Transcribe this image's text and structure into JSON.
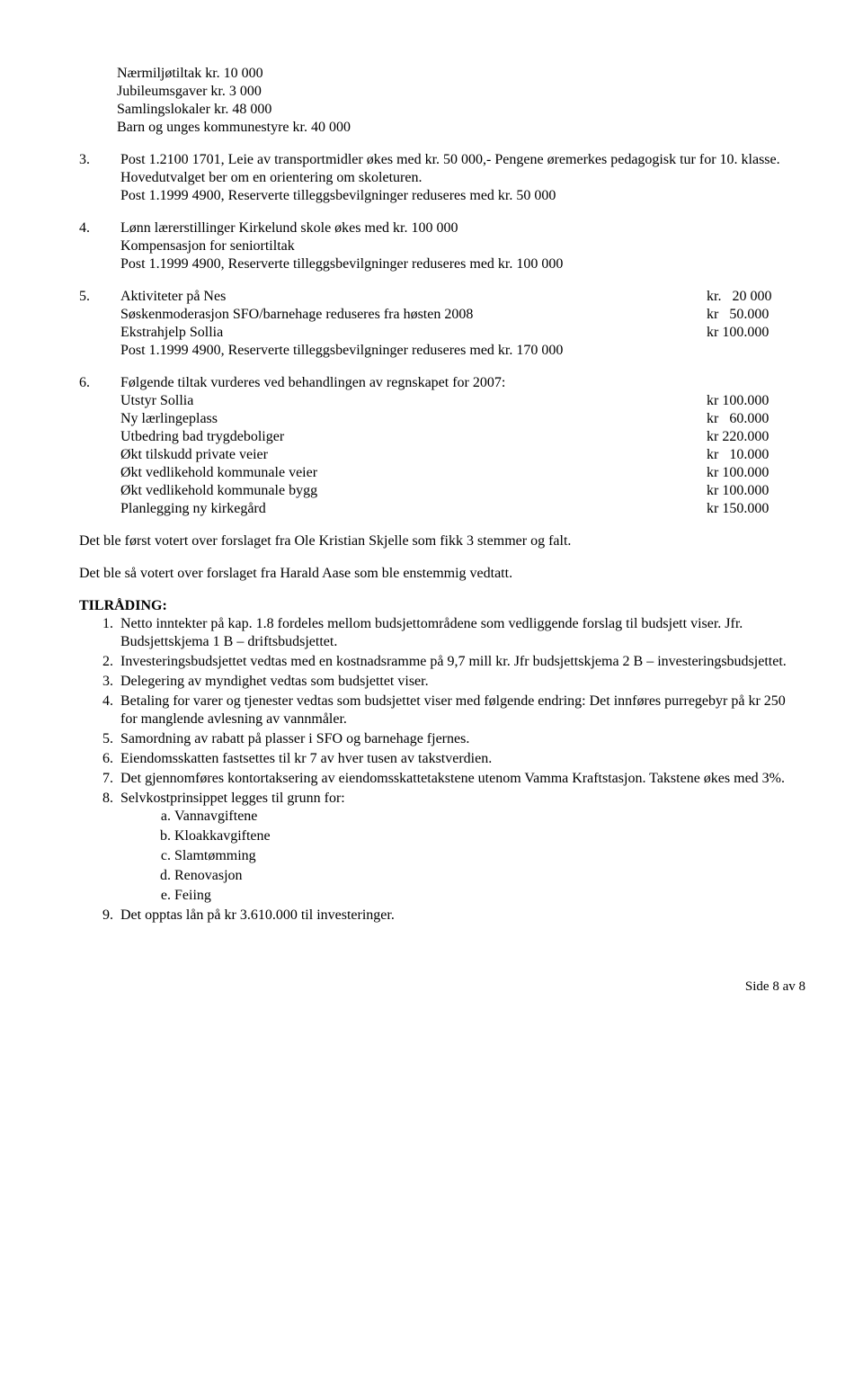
{
  "top": {
    "l1": "Nærmiljøtiltak kr. 10 000",
    "l2": "Jubileumsgaver kr. 3 000",
    "l3": "Samlingslokaler kr. 48 000",
    "l4": "Barn og unges kommunestyre kr. 40 000"
  },
  "item3": {
    "num": "3.",
    "l1": "Post 1.2100 1701, Leie av transportmidler økes med kr. 50 000,- Pengene øremerkes pedagogisk tur for 10. klasse. Hovedutvalget ber om en orientering om skoleturen.",
    "l2": "Post 1.1999 4900, Reserverte tilleggsbevilgninger reduseres med kr. 50 000"
  },
  "item4": {
    "num": "4.",
    "l1": "Lønn lærerstillinger Kirkelund skole økes med kr. 100 000",
    "l2": "Kompensasjon for seniortiltak",
    "l3": "Post 1.1999 4900, Reserverte tilleggsbevilgninger reduseres med kr. 100 000"
  },
  "item5": {
    "num": "5.",
    "r1l": "Aktiviteter på Nes",
    "r1v": "kr.   20 000",
    "r2l": "Søskenmoderasjon SFO/barnehage reduseres fra høsten 2008",
    "r2v": "kr   50.000",
    "r3l": "Ekstrahjelp Sollia",
    "r3v": "kr 100.000",
    "l4": "Post 1.1999 4900, Reserverte tilleggsbevilgninger reduseres med kr. 170 000"
  },
  "item6": {
    "num": "6.",
    "intro": "Følgende tiltak vurderes ved behandlingen av regnskapet for 2007:",
    "r1l": "Utstyr Sollia",
    "r1v": "kr 100.000",
    "r2l": "Ny lærlingeplass",
    "r2v": "kr   60.000",
    "r3l": "Utbedring bad trygdeboliger",
    "r3v": "kr 220.000",
    "r4l": "Økt tilskudd private veier",
    "r4v": "kr   10.000",
    "r5l": "Økt vedlikehold kommunale veier",
    "r5v": "kr 100.000",
    "r6l": "Økt vedlikehold kommunale bygg",
    "r6v": "kr 100.000",
    "r7l": "Planlegging ny kirkegård",
    "r7v": "kr 150.000"
  },
  "para1": "Det ble først votert over forslaget fra Ole Kristian Skjelle som fikk 3 stemmer og falt.",
  "para2": "Det ble så votert over forslaget fra Harald Aase som ble enstemmig vedtatt.",
  "heading": "TILRÅDING:",
  "ol": {
    "i1": "Netto inntekter på kap. 1.8 fordeles mellom budsjettområdene som vedliggende forslag til budsjett viser. Jfr. Budsjettskjema 1 B – driftsbudsjettet.",
    "i2": "Investeringsbudsjettet vedtas med en kostnadsramme på 9,7 mill kr. Jfr budsjettskjema 2 B – investeringsbudsjettet.",
    "i3": "Delegering av myndighet vedtas som budsjettet viser.",
    "i4": "Betaling for varer og tjenester vedtas som budsjettet viser med følgende endring: Det innføres purregebyr på kr 250 for manglende avlesning av vannmåler.",
    "i5": "Samordning av rabatt på plasser i SFO og barnehage fjernes.",
    "i6": "Eiendomsskatten fastsettes til kr 7 av hver tusen av takstverdien.",
    "i7": "Det gjennomføres kontortaksering av eiendomsskattetakstene utenom Vamma Kraftstasjon. Takstene økes med 3%.",
    "i8": "Selvkostprinsippet legges til grunn for:",
    "sub": {
      "a": "Vannavgiftene",
      "b": "Kloakkavgiftene",
      "c": "Slamtømming",
      "d": "Renovasjon",
      "e": "Feiing"
    },
    "i9": "Det opptas lån på kr 3.610.000 til investeringer."
  },
  "footer": "Side 8 av 8"
}
